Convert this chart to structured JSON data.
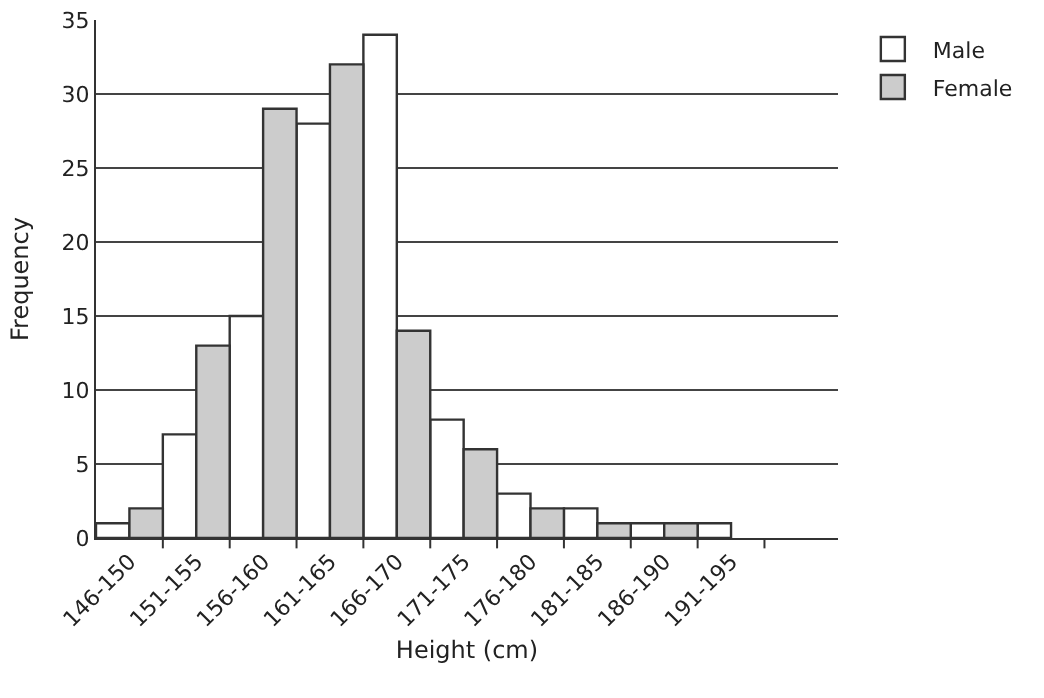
{
  "chart_data": {
    "type": "bar",
    "xlabel": "Height (cm)",
    "ylabel": "Frequency",
    "categories": [
      "146-150",
      "151-155",
      "156-160",
      "161-165",
      "166-170",
      "171-175",
      "176-180",
      "181-185",
      "186-190",
      "191-195"
    ],
    "series": [
      {
        "name": "Male",
        "color": "#ffffff",
        "values": [
          1,
          7,
          15,
          28,
          34,
          8,
          3,
          2,
          1,
          1
        ]
      },
      {
        "name": "Female",
        "color": "#cccccc",
        "values": [
          2,
          13,
          29,
          32,
          14,
          6,
          2,
          1,
          1,
          null
        ]
      }
    ],
    "ylim": [
      0,
      35
    ],
    "yticks": [
      0,
      5,
      10,
      15,
      20,
      25,
      30,
      35
    ],
    "grid": "y",
    "legend": "top right"
  }
}
